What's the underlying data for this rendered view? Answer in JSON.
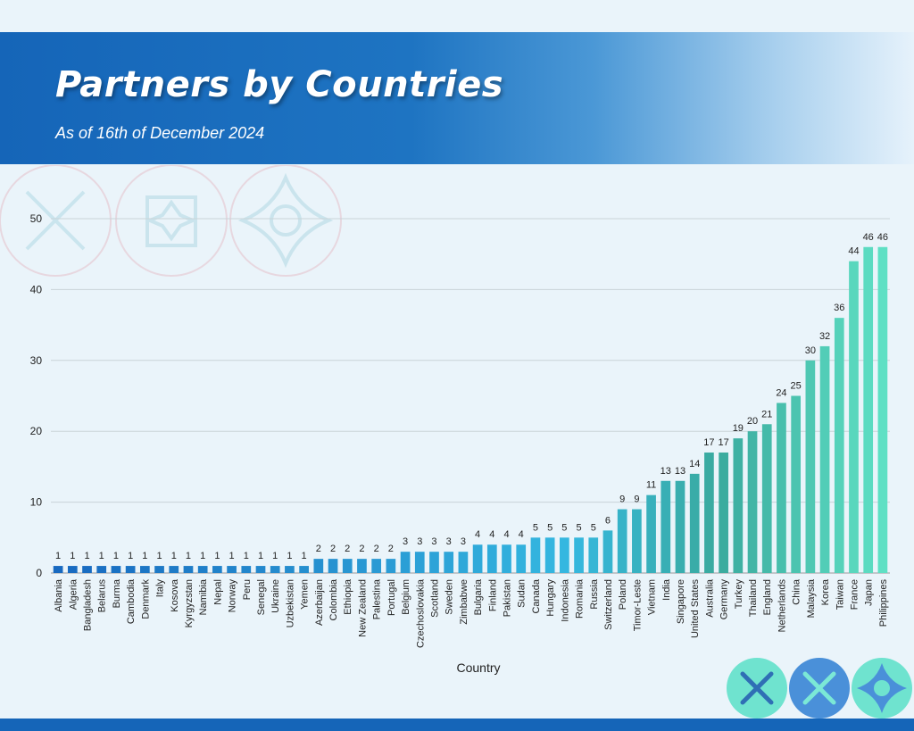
{
  "header": {
    "title": "Partners by Countries",
    "subtitle": "As of 16th of December 2024"
  },
  "colors": {
    "header_blue": "#1565b8",
    "bar_dark_blue": "#1769c0",
    "bar_light_blue": "#35b8e0",
    "bar_teal": "#3aaa9e",
    "bar_mint": "#5fe0c4"
  },
  "chart_data": {
    "type": "bar",
    "xlabel": "Country",
    "ylabel": "",
    "ylim": [
      0,
      50
    ],
    "yticks": [
      0,
      10,
      20,
      30,
      40,
      50
    ],
    "grid": true,
    "data_labels": true,
    "categories": [
      "Albania",
      "Algeria",
      "Bangladesh",
      "Belarus",
      "Burma",
      "Cambodia",
      "Denmark",
      "Italy",
      "Kosova",
      "Kyrgyzstan",
      "Namibia",
      "Nepal",
      "Norway",
      "Peru",
      "Senegal",
      "Ukraine",
      "Uzbekistan",
      "Yemen",
      "Azerbaijan",
      "Colombia",
      "Ethiopia",
      "New Zealand",
      "Palestina",
      "Portugal",
      "Belgium",
      "Czechoslovakia",
      "Scotland",
      "Sweden",
      "Zimbabwe",
      "Bulgaria",
      "Finland",
      "Pakistan",
      "Sudan",
      "Canada",
      "Hungary",
      "Indonesia",
      "Romania",
      "Russia",
      "Switzerland",
      "Poland",
      "Timor-Leste",
      "Vietnam",
      "India",
      "Singapore",
      "United States",
      "Australia",
      "Germany",
      "Turkey",
      "Thailand",
      "England",
      "Netherlands",
      "China",
      "Malaysia",
      "Korea",
      "Taiwan",
      "France",
      "Japan",
      "Philippines"
    ],
    "values": [
      1,
      1,
      1,
      1,
      1,
      1,
      1,
      1,
      1,
      1,
      1,
      1,
      1,
      1,
      1,
      1,
      1,
      1,
      2,
      2,
      2,
      2,
      2,
      2,
      3,
      3,
      3,
      3,
      3,
      4,
      4,
      4,
      4,
      5,
      5,
      5,
      5,
      5,
      6,
      9,
      9,
      11,
      13,
      13,
      14,
      17,
      17,
      19,
      20,
      21,
      24,
      25,
      30,
      32,
      36,
      44,
      46,
      46
    ]
  }
}
